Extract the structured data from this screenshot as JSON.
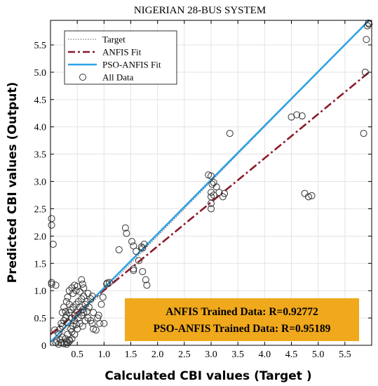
{
  "chart_data": {
    "type": "scatter",
    "title": "NIGERIAN 28-BUS SYSTEM",
    "xlabel": "Calculated CBI values (Target )",
    "ylabel": "Predicted CBI values (Output)",
    "xlim": [
      0,
      6.0
    ],
    "ylim": [
      0,
      5.95
    ],
    "xticks": [
      0.5,
      1,
      1.5,
      2,
      2.5,
      3,
      3.5,
      4,
      4.5,
      5,
      5.5
    ],
    "xtick_labels": [
      "0.5",
      "1.0",
      "1.5",
      "2.0",
      "2.5",
      "3.0",
      "3.5",
      "4.0",
      "4.5",
      "5.0",
      "5.5"
    ],
    "yticks": [
      0,
      0.5,
      1,
      1.5,
      2,
      2.5,
      3,
      3.5,
      4,
      4.5,
      5,
      5.5
    ],
    "ytick_labels": [
      "0",
      "0.5",
      "1.0",
      "1.5",
      "2.0",
      "2.5",
      "3.0",
      "3.5",
      "4.0",
      "4.5",
      "5.0",
      "5.5"
    ],
    "grid": true,
    "legend_position": "top-left",
    "legend": [
      {
        "label": "Target",
        "style": "dotted",
        "color": "#555555"
      },
      {
        "label": "ANFIS Fit",
        "style": "dashdot",
        "color": "#8b1a2b"
      },
      {
        "label": "PSO-ANFIS Fit",
        "style": "solid",
        "color": "#2ea3e3"
      },
      {
        "label": "All Data",
        "style": "marker",
        "color": "#333333"
      }
    ],
    "lines": {
      "target": {
        "x": [
          0,
          5.95
        ],
        "y": [
          0,
          5.95
        ]
      },
      "anfis": {
        "x": [
          0,
          5.95
        ],
        "y": [
          0.2,
          5.0
        ]
      },
      "pso_anfis": {
        "x": [
          0,
          5.95
        ],
        "y": [
          0.06,
          5.95
        ]
      }
    },
    "series": [
      {
        "name": "All Data",
        "points": [
          [
            0.02,
            2.32
          ],
          [
            0.02,
            2.2
          ],
          [
            0.05,
            1.85
          ],
          [
            0.02,
            1.15
          ],
          [
            0.02,
            1.12
          ],
          [
            0.1,
            1.1
          ],
          [
            0.1,
            0.05
          ],
          [
            0.12,
            0.08
          ],
          [
            0.15,
            0.02
          ],
          [
            0.18,
            0.1
          ],
          [
            0.2,
            0.05
          ],
          [
            0.22,
            0.15
          ],
          [
            0.25,
            0.03
          ],
          [
            0.28,
            0.12
          ],
          [
            0.3,
            0.06
          ],
          [
            0.32,
            0.2
          ],
          [
            0.35,
            0.1
          ],
          [
            0.38,
            0.3
          ],
          [
            0.18,
            0.3
          ],
          [
            0.2,
            0.4
          ],
          [
            0.22,
            0.35
          ],
          [
            0.25,
            0.45
          ],
          [
            0.28,
            0.5
          ],
          [
            0.3,
            0.55
          ],
          [
            0.32,
            0.42
          ],
          [
            0.35,
            0.6
          ],
          [
            0.38,
            0.65
          ],
          [
            0.4,
            0.5
          ],
          [
            0.42,
            0.7
          ],
          [
            0.45,
            0.55
          ],
          [
            0.48,
            0.75
          ],
          [
            0.5,
            0.6
          ],
          [
            0.52,
            0.8
          ],
          [
            0.55,
            0.7
          ],
          [
            0.58,
            0.85
          ],
          [
            0.6,
            0.65
          ],
          [
            0.62,
            0.9
          ],
          [
            0.65,
            0.75
          ],
          [
            0.68,
            0.8
          ],
          [
            0.7,
            0.95
          ],
          [
            0.72,
            0.7
          ],
          [
            0.75,
            0.85
          ],
          [
            0.78,
            0.9
          ],
          [
            0.8,
            0.6
          ],
          [
            0.35,
            1.0
          ],
          [
            0.4,
            1.05
          ],
          [
            0.42,
            0.95
          ],
          [
            0.45,
            1.1
          ],
          [
            0.48,
            1.0
          ],
          [
            0.5,
            1.08
          ],
          [
            0.55,
            0.98
          ],
          [
            0.58,
            1.2
          ],
          [
            0.6,
            1.12
          ],
          [
            0.62,
            1.05
          ],
          [
            0.3,
            0.8
          ],
          [
            0.32,
            0.88
          ],
          [
            0.35,
            0.75
          ],
          [
            0.28,
            0.62
          ],
          [
            0.25,
            0.7
          ],
          [
            0.22,
            0.6
          ],
          [
            0.4,
            0.25
          ],
          [
            0.42,
            0.35
          ],
          [
            0.45,
            0.2
          ],
          [
            0.5,
            0.3
          ],
          [
            0.55,
            0.4
          ],
          [
            0.6,
            0.35
          ],
          [
            0.65,
            0.45
          ],
          [
            0.7,
            0.5
          ],
          [
            0.75,
            0.45
          ],
          [
            0.78,
            0.4
          ],
          [
            0.8,
            0.3
          ],
          [
            0.85,
            0.28
          ],
          [
            0.88,
            0.5
          ],
          [
            0.9,
            0.55
          ],
          [
            0.92,
            0.4
          ],
          [
            0.95,
            0.75
          ],
          [
            1.0,
            0.4
          ],
          [
            0.98,
            0.88
          ],
          [
            0.45,
            0.45
          ],
          [
            0.48,
            0.38
          ],
          [
            0.52,
            0.5
          ],
          [
            0.58,
            0.55
          ],
          [
            0.62,
            0.6
          ],
          [
            0.68,
            0.62
          ],
          [
            0.3,
            0.02
          ],
          [
            0.33,
            0.05
          ],
          [
            0.36,
            0.08
          ],
          [
            0.4,
            0.12
          ],
          [
            0.15,
            0.22
          ],
          [
            0.08,
            0.28
          ],
          [
            1.05,
            1.12
          ],
          [
            1.06,
            1.14
          ],
          [
            1.1,
            1.15
          ],
          [
            1.28,
            1.75
          ],
          [
            1.4,
            2.15
          ],
          [
            1.42,
            2.05
          ],
          [
            1.52,
            1.9
          ],
          [
            1.55,
            1.82
          ],
          [
            1.55,
            1.4
          ],
          [
            1.55,
            1.37
          ],
          [
            1.6,
            1.72
          ],
          [
            1.65,
            1.55
          ],
          [
            1.7,
            1.8
          ],
          [
            1.72,
            1.78
          ],
          [
            1.72,
            1.35
          ],
          [
            1.75,
            1.85
          ],
          [
            1.78,
            1.2
          ],
          [
            1.8,
            1.1
          ],
          [
            2.95,
            3.12
          ],
          [
            3.0,
            3.1
          ],
          [
            3.02,
            2.95
          ],
          [
            3.05,
            2.98
          ],
          [
            3.0,
            2.8
          ],
          [
            3.0,
            2.72
          ],
          [
            3.0,
            2.5
          ],
          [
            3.0,
            2.6
          ],
          [
            3.05,
            2.75
          ],
          [
            3.1,
            2.9
          ],
          [
            3.15,
            2.8
          ],
          [
            3.22,
            2.72
          ],
          [
            3.25,
            2.78
          ],
          [
            3.35,
            3.88
          ],
          [
            4.5,
            4.18
          ],
          [
            4.6,
            4.22
          ],
          [
            4.7,
            4.2
          ],
          [
            4.75,
            2.78
          ],
          [
            4.82,
            2.72
          ],
          [
            4.88,
            2.74
          ],
          [
            5.85,
            3.88
          ],
          [
            5.88,
            5.0
          ],
          [
            5.9,
            5.6
          ],
          [
            5.92,
            5.85
          ],
          [
            5.94,
            5.9
          ],
          [
            5.95,
            5.88
          ]
        ]
      }
    ],
    "annotation": {
      "lines": [
        "ANFIS Trained Data: R=0.92772",
        "PSO-ANFIS Trained Data: R=0.95189"
      ],
      "background": "#f0a81c"
    }
  }
}
